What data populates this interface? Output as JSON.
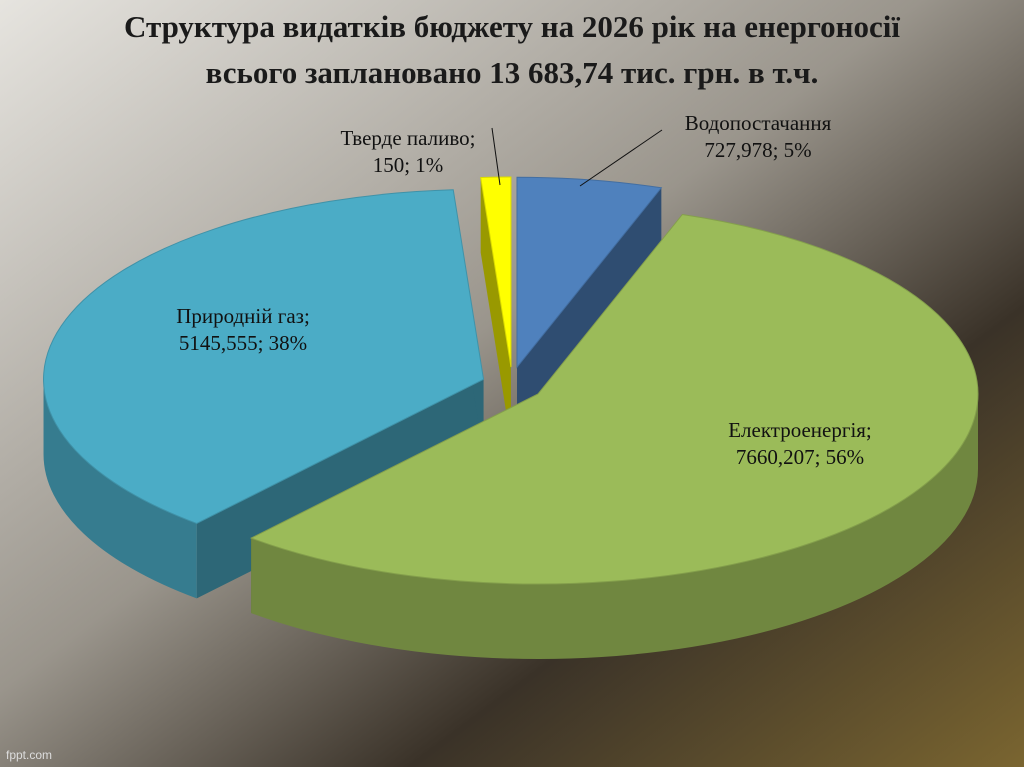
{
  "chart_data": {
    "type": "pie",
    "title": "Структура видатків бюджету на 2026 рік на енергоносії",
    "subtitle": "всього заплановано 13 683,74 тис. грн. в т.ч.",
    "categories": [
      "Водопостачання",
      "Електроенергія;",
      "Природній газ;",
      "Тверде паливо;"
    ],
    "values": [
      727.978,
      7660.207,
      5145.555,
      150
    ],
    "value_labels": [
      "727,978; 5%",
      "7660,207; 56%",
      "5145,555; 38%",
      "150; 1%"
    ],
    "colors": [
      "#4f81bd",
      "#9bbb59",
      "#4bacc6",
      "#ffff00"
    ],
    "watermark": "fppt.com"
  }
}
